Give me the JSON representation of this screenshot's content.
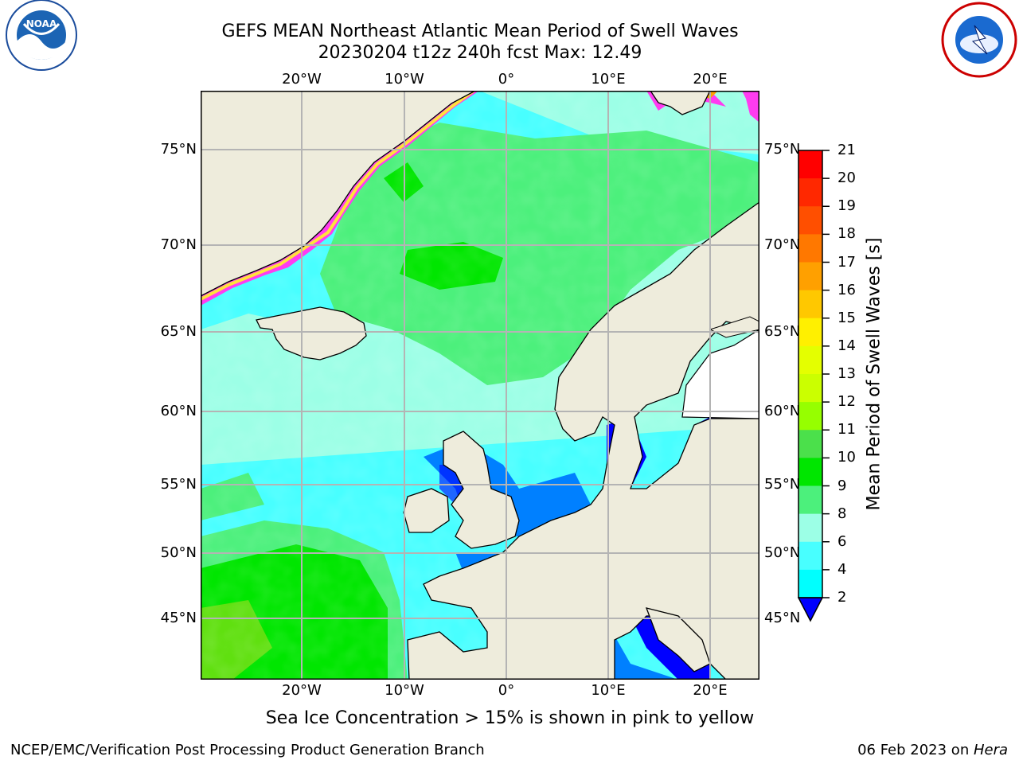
{
  "header": {
    "title": "GEFS MEAN Northeast Atlantic Mean Period of Swell Waves",
    "subtitle": "20230204 t12z 240h fcst   Max: 12.49"
  },
  "logos": {
    "left": "noaa-logo",
    "right": "national-weather-service-logo"
  },
  "map": {
    "lat_labels": [
      "75°N",
      "70°N",
      "65°N",
      "60°N",
      "55°N",
      "50°N",
      "45°N"
    ],
    "lon_labels": [
      "20°W",
      "10°W",
      "0°",
      "10°E",
      "20°E"
    ],
    "colors": {
      "land": "#eeecdc",
      "ocean_base": "#48ffff",
      "ice_pink": "#ff3cf0",
      "ice_yellow": "#ffe23c",
      "grid": "#b4b4b4"
    }
  },
  "colorbar": {
    "label": "Mean Period of Swell Waves [s]",
    "ticks": [
      "21",
      "20",
      "19",
      "18",
      "17",
      "16",
      "15",
      "14",
      "13",
      "12",
      "11",
      "10",
      "9",
      "8",
      "6",
      "4",
      "2"
    ],
    "colors_top_to_bottom": [
      "#ff0000",
      "#ff2800",
      "#ff4f00",
      "#ff7800",
      "#ffa000",
      "#ffc800",
      "#fff000",
      "#e4ff00",
      "#cbff00",
      "#96ff00",
      "#4be04b",
      "#00e600",
      "#4cf07c",
      "#9cffe6",
      "#48ffff",
      "#00fffe",
      "#0080ff",
      "#0000ff"
    ]
  },
  "chart_data": {
    "type": "heatmap",
    "title": "GEFS MEAN Northeast Atlantic Mean Period of Swell Waves",
    "subtitle": "20230204 t12z 240h fcst   Max: 12.49",
    "colorbar_label": "Mean Period of Swell Waves [s]",
    "colorbar_ticks": [
      21,
      20,
      19,
      18,
      17,
      16,
      15,
      14,
      13,
      12,
      11,
      10,
      9,
      8,
      6,
      4,
      2
    ],
    "x_ticks": [
      "20°W",
      "10°W",
      "0°",
      "10°E",
      "20°E"
    ],
    "y_ticks": [
      "75°N",
      "70°N",
      "65°N",
      "60°N",
      "55°N",
      "50°N",
      "45°N"
    ],
    "max": 12.49,
    "grid": true
  },
  "note": "Sea Ice Concentration > 15% is shown in pink to yellow",
  "footer": {
    "left": "NCEP/EMC/Verification Post Processing Product Generation Branch",
    "right_prefix": "06 Feb 2023 on ",
    "right_host": "Hera"
  }
}
